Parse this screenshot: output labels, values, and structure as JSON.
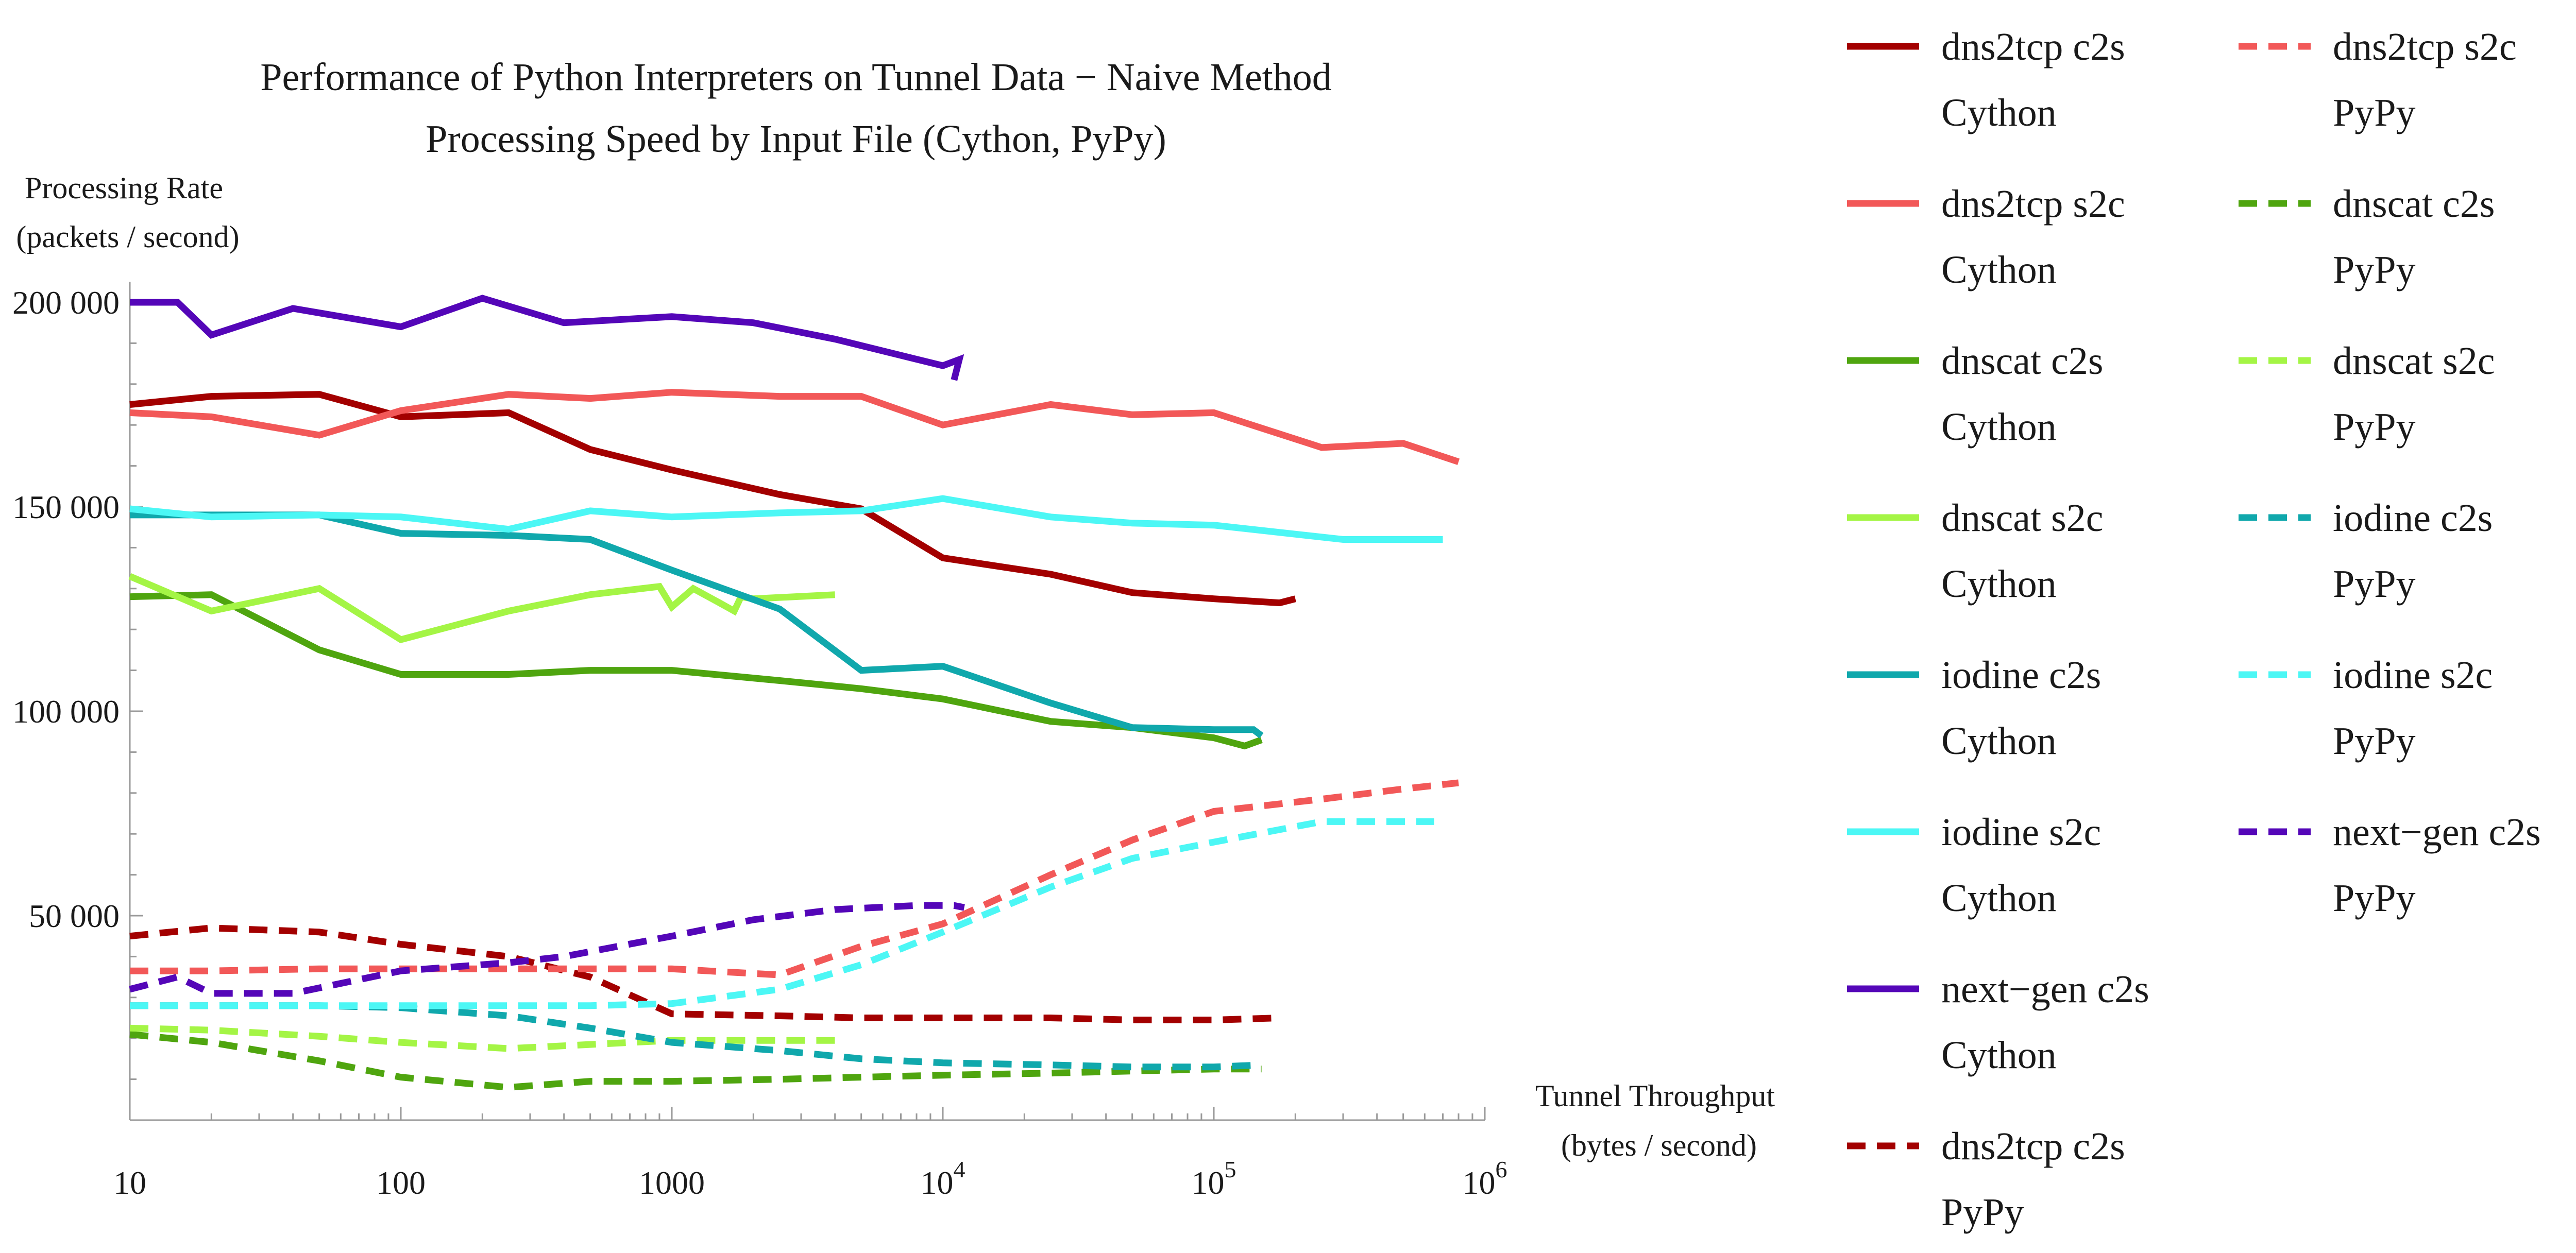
{
  "chart_data": {
    "type": "line",
    "title": "Performance of Python Interpreters on Tunnel Data − Naive Method",
    "subtitle": "Processing Speed by Input File (Cython, PyPy)",
    "ylabel": [
      "Processing Rate",
      "(packets / second)"
    ],
    "xlabel": [
      "Tunnel Throughput",
      "(bytes / second)"
    ],
    "x_scale": "log",
    "xlim": [
      10,
      1000000
    ],
    "ylim": [
      0,
      205000
    ],
    "x_ticks": [
      {
        "value": 10,
        "base": "10",
        "exp": ""
      },
      {
        "value": 100,
        "base": "100",
        "exp": ""
      },
      {
        "value": 1000,
        "base": "1000",
        "exp": ""
      },
      {
        "value": 10000,
        "base": "10",
        "exp": "4"
      },
      {
        "value": 100000,
        "base": "10",
        "exp": "5"
      },
      {
        "value": 1000000,
        "base": "10",
        "exp": "6"
      }
    ],
    "y_ticks": [
      {
        "value": 50000,
        "label": "50 000"
      },
      {
        "value": 100000,
        "label": "100 000"
      },
      {
        "value": 150000,
        "label": "150 000"
      },
      {
        "value": 200000,
        "label": "200 000"
      }
    ],
    "grid": false,
    "legend_position": "right",
    "series": [
      {
        "name": [
          "dns2tcp c2s",
          "Cython"
        ],
        "color": "#a30000",
        "dash": false,
        "points": [
          [
            10,
            175000
          ],
          [
            20,
            177000
          ],
          [
            50,
            177500
          ],
          [
            100,
            172000
          ],
          [
            250,
            173000
          ],
          [
            500,
            164000
          ],
          [
            1000,
            159000
          ],
          [
            2500,
            153000
          ],
          [
            5000,
            149500
          ],
          [
            10000,
            137500
          ],
          [
            25000,
            133500
          ],
          [
            50000,
            129000
          ],
          [
            100000,
            127500
          ],
          [
            175000,
            126500
          ],
          [
            200000,
            127500
          ]
        ]
      },
      {
        "name": [
          "dns2tcp s2c",
          "Cython"
        ],
        "color": "#f25858",
        "dash": false,
        "points": [
          [
            10,
            173000
          ],
          [
            20,
            172000
          ],
          [
            50,
            167500
          ],
          [
            100,
            173500
          ],
          [
            250,
            177500
          ],
          [
            500,
            176500
          ],
          [
            1000,
            178000
          ],
          [
            2500,
            177000
          ],
          [
            5000,
            177000
          ],
          [
            10000,
            170000
          ],
          [
            25000,
            175000
          ],
          [
            50000,
            172500
          ],
          [
            100000,
            173000
          ],
          [
            250000,
            164500
          ],
          [
            500000,
            165500
          ],
          [
            800000,
            161000
          ]
        ]
      },
      {
        "name": [
          "dnscat c2s",
          "Cython"
        ],
        "color": "#4fa50f",
        "dash": false,
        "points": [
          [
            10,
            128000
          ],
          [
            20,
            128500
          ],
          [
            50,
            115000
          ],
          [
            100,
            109000
          ],
          [
            250,
            109000
          ],
          [
            500,
            110000
          ],
          [
            1000,
            110000
          ],
          [
            2500,
            107500
          ],
          [
            5000,
            105500
          ],
          [
            10000,
            103000
          ],
          [
            25000,
            97500
          ],
          [
            50000,
            96000
          ],
          [
            100000,
            93500
          ],
          [
            130000,
            91500
          ],
          [
            150000,
            93000
          ]
        ]
      },
      {
        "name": [
          "dnscat s2c",
          "Cython"
        ],
        "color": "#a4f545",
        "dash": false,
        "points": [
          [
            10,
            133000
          ],
          [
            20,
            124500
          ],
          [
            50,
            130000
          ],
          [
            100,
            117500
          ],
          [
            250,
            124500
          ],
          [
            500,
            128500
          ],
          [
            900,
            130500
          ],
          [
            1000,
            125500
          ],
          [
            1200,
            130000
          ],
          [
            1500,
            126500
          ],
          [
            1700,
            124500
          ],
          [
            1800,
            128000
          ],
          [
            2000,
            127500
          ],
          [
            4000,
            128500
          ]
        ]
      },
      {
        "name": [
          "iodine c2s",
          "Cython"
        ],
        "color": "#10a8ac",
        "dash": false,
        "points": [
          [
            10,
            148000
          ],
          [
            20,
            148000
          ],
          [
            50,
            148000
          ],
          [
            100,
            143500
          ],
          [
            250,
            143000
          ],
          [
            500,
            142000
          ],
          [
            1000,
            134500
          ],
          [
            2500,
            125000
          ],
          [
            5000,
            110000
          ],
          [
            10000,
            111000
          ],
          [
            25000,
            102000
          ],
          [
            50000,
            96000
          ],
          [
            100000,
            95500
          ],
          [
            140000,
            95500
          ],
          [
            150000,
            94000
          ]
        ]
      },
      {
        "name": [
          "iodine s2c",
          "Cython"
        ],
        "color": "#4cf7f5",
        "dash": false,
        "points": [
          [
            10,
            149500
          ],
          [
            20,
            147500
          ],
          [
            50,
            148000
          ],
          [
            100,
            147500
          ],
          [
            250,
            144500
          ],
          [
            500,
            149000
          ],
          [
            1000,
            147500
          ],
          [
            2500,
            148500
          ],
          [
            5000,
            149000
          ],
          [
            10000,
            152000
          ],
          [
            25000,
            147500
          ],
          [
            50000,
            146000
          ],
          [
            100000,
            145500
          ],
          [
            300000,
            142000
          ],
          [
            700000,
            142000
          ]
        ]
      },
      {
        "name": [
          "next−gen c2s",
          "Cython"
        ],
        "color": "#5406b8",
        "dash": false,
        "points": [
          [
            10,
            200000
          ],
          [
            15,
            200000
          ],
          [
            20,
            192000
          ],
          [
            40,
            198500
          ],
          [
            100,
            194000
          ],
          [
            200,
            201000
          ],
          [
            400,
            195000
          ],
          [
            1000,
            196500
          ],
          [
            2000,
            195000
          ],
          [
            4000,
            191000
          ],
          [
            10000,
            184500
          ],
          [
            11500,
            186000
          ],
          [
            11000,
            181000
          ]
        ]
      },
      {
        "name": [
          "dns2tcp c2s",
          "PyPy"
        ],
        "color": "#a30000",
        "dash": true,
        "points": [
          [
            10,
            45000
          ],
          [
            20,
            47000
          ],
          [
            50,
            46000
          ],
          [
            100,
            43000
          ],
          [
            250,
            40000
          ],
          [
            500,
            35000
          ],
          [
            1000,
            26000
          ],
          [
            2500,
            25500
          ],
          [
            5000,
            25000
          ],
          [
            10000,
            25000
          ],
          [
            25000,
            25000
          ],
          [
            50000,
            24500
          ],
          [
            100000,
            24500
          ],
          [
            175000,
            25000
          ]
        ]
      },
      {
        "name": [
          "dns2tcp s2c",
          "PyPy"
        ],
        "color": "#f25858",
        "dash": true,
        "points": [
          [
            10,
            36500
          ],
          [
            20,
            36500
          ],
          [
            50,
            37000
          ],
          [
            100,
            37000
          ],
          [
            250,
            37000
          ],
          [
            500,
            37000
          ],
          [
            1000,
            37000
          ],
          [
            2500,
            35500
          ],
          [
            5000,
            42500
          ],
          [
            10000,
            48000
          ],
          [
            25000,
            60000
          ],
          [
            50000,
            68500
          ],
          [
            100000,
            75500
          ],
          [
            250000,
            78500
          ],
          [
            500000,
            81000
          ],
          [
            800000,
            82500
          ]
        ]
      },
      {
        "name": [
          "dnscat c2s",
          "PyPy"
        ],
        "color": "#4fa50f",
        "dash": true,
        "points": [
          [
            10,
            21000
          ],
          [
            20,
            19000
          ],
          [
            50,
            14500
          ],
          [
            100,
            10500
          ],
          [
            250,
            8000
          ],
          [
            500,
            9500
          ],
          [
            1000,
            9500
          ],
          [
            2500,
            10000
          ],
          [
            5000,
            10500
          ],
          [
            10000,
            11000
          ],
          [
            25000,
            11500
          ],
          [
            50000,
            12000
          ],
          [
            100000,
            12500
          ],
          [
            150000,
            12500
          ]
        ]
      },
      {
        "name": [
          "dnscat s2c",
          "PyPy"
        ],
        "color": "#a4f545",
        "dash": true,
        "points": [
          [
            10,
            22500
          ],
          [
            20,
            22000
          ],
          [
            50,
            20500
          ],
          [
            100,
            19000
          ],
          [
            250,
            17500
          ],
          [
            500,
            18500
          ],
          [
            1000,
            19500
          ],
          [
            2000,
            19500
          ],
          [
            4000,
            19500
          ]
        ]
      },
      {
        "name": [
          "iodine c2s",
          "PyPy"
        ],
        "color": "#10a8ac",
        "dash": true,
        "points": [
          [
            10,
            28000
          ],
          [
            20,
            28000
          ],
          [
            50,
            28000
          ],
          [
            100,
            27500
          ],
          [
            250,
            25500
          ],
          [
            500,
            22500
          ],
          [
            1000,
            19000
          ],
          [
            2500,
            17000
          ],
          [
            5000,
            15000
          ],
          [
            10000,
            14000
          ],
          [
            25000,
            13500
          ],
          [
            50000,
            13000
          ],
          [
            100000,
            13000
          ],
          [
            150000,
            13500
          ]
        ]
      },
      {
        "name": [
          "iodine s2c",
          "PyPy"
        ],
        "color": "#4cf7f5",
        "dash": true,
        "points": [
          [
            10,
            28000
          ],
          [
            20,
            28000
          ],
          [
            50,
            28000
          ],
          [
            100,
            28000
          ],
          [
            250,
            28000
          ],
          [
            500,
            28000
          ],
          [
            1000,
            28500
          ],
          [
            2500,
            32000
          ],
          [
            5000,
            38000
          ],
          [
            10000,
            46000
          ],
          [
            25000,
            57000
          ],
          [
            50000,
            64000
          ],
          [
            100000,
            68000
          ],
          [
            250000,
            73000
          ],
          [
            650000,
            73000
          ]
        ]
      },
      {
        "name": [
          "next−gen c2s",
          "PyPy"
        ],
        "color": "#5406b8",
        "dash": true,
        "points": [
          [
            10,
            32000
          ],
          [
            15,
            35000
          ],
          [
            20,
            31000
          ],
          [
            40,
            31000
          ],
          [
            100,
            36500
          ],
          [
            250,
            38500
          ],
          [
            400,
            40000
          ],
          [
            1000,
            45000
          ],
          [
            2000,
            49000
          ],
          [
            4000,
            51500
          ],
          [
            8000,
            52500
          ],
          [
            11000,
            52500
          ],
          [
            12000,
            52000
          ]
        ]
      }
    ]
  }
}
